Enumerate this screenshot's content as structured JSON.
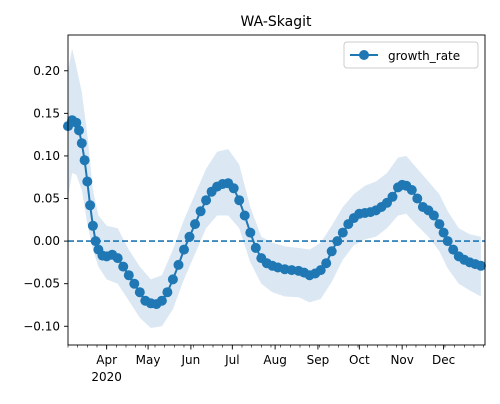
{
  "chart_data": {
    "type": "line",
    "title": "WA-Skagit",
    "xlabel": "",
    "ylabel": "",
    "x_range": [
      "2020-03-04",
      "2020-12-31"
    ],
    "ylim": [
      -0.122,
      0.242
    ],
    "y_ticks": [
      -0.1,
      -0.05,
      0.0,
      0.05,
      0.1,
      0.15,
      0.2
    ],
    "y_tick_labels": [
      "−0.10",
      "−0.05",
      "0.00",
      "0.05",
      "0.10",
      "0.15",
      "0.20"
    ],
    "x_ticks": [
      {
        "date": "2020-04-01",
        "label": "Apr",
        "sublabel": "2020"
      },
      {
        "date": "2020-05-01",
        "label": "May",
        "sublabel": ""
      },
      {
        "date": "2020-06-01",
        "label": "Jun",
        "sublabel": ""
      },
      {
        "date": "2020-07-01",
        "label": "Jul",
        "sublabel": ""
      },
      {
        "date": "2020-08-01",
        "label": "Aug",
        "sublabel": ""
      },
      {
        "date": "2020-09-01",
        "label": "Sep",
        "sublabel": ""
      },
      {
        "date": "2020-10-01",
        "label": "Oct",
        "sublabel": ""
      },
      {
        "date": "2020-11-01",
        "label": "Nov",
        "sublabel": ""
      },
      {
        "date": "2020-12-01",
        "label": "Dec",
        "sublabel": ""
      }
    ],
    "grid": false,
    "legend": {
      "position": "top-right",
      "entries": [
        "growth_rate"
      ]
    },
    "reference_line": {
      "y": 0.0,
      "style": "dashed"
    },
    "colors": {
      "line": "#1f77b4",
      "band": "#dbe8f4"
    },
    "series": [
      {
        "name": "growth_rate",
        "marker": "circle",
        "points": [
          [
            "2020-03-04",
            0.135
          ],
          [
            "2020-03-07",
            0.142
          ],
          [
            "2020-03-10",
            0.139
          ],
          [
            "2020-03-12",
            0.13
          ],
          [
            "2020-03-14",
            0.115
          ],
          [
            "2020-03-16",
            0.095
          ],
          [
            "2020-03-18",
            0.07
          ],
          [
            "2020-03-20",
            0.042
          ],
          [
            "2020-03-22",
            0.018
          ],
          [
            "2020-03-24",
            0.0
          ],
          [
            "2020-03-26",
            -0.01
          ],
          [
            "2020-03-29",
            -0.017
          ],
          [
            "2020-04-01",
            -0.018
          ],
          [
            "2020-04-05",
            -0.016
          ],
          [
            "2020-04-09",
            -0.02
          ],
          [
            "2020-04-13",
            -0.03
          ],
          [
            "2020-04-17",
            -0.04
          ],
          [
            "2020-04-21",
            -0.05
          ],
          [
            "2020-04-25",
            -0.06
          ],
          [
            "2020-04-29",
            -0.07
          ],
          [
            "2020-05-03",
            -0.073
          ],
          [
            "2020-05-07",
            -0.074
          ],
          [
            "2020-05-11",
            -0.07
          ],
          [
            "2020-05-15",
            -0.06
          ],
          [
            "2020-05-19",
            -0.045
          ],
          [
            "2020-05-23",
            -0.028
          ],
          [
            "2020-05-27",
            -0.01
          ],
          [
            "2020-05-31",
            0.005
          ],
          [
            "2020-06-04",
            0.02
          ],
          [
            "2020-06-08",
            0.035
          ],
          [
            "2020-06-12",
            0.048
          ],
          [
            "2020-06-16",
            0.058
          ],
          [
            "2020-06-20",
            0.064
          ],
          [
            "2020-06-24",
            0.067
          ],
          [
            "2020-06-28",
            0.068
          ],
          [
            "2020-07-02",
            0.062
          ],
          [
            "2020-07-06",
            0.048
          ],
          [
            "2020-07-10",
            0.03
          ],
          [
            "2020-07-14",
            0.01
          ],
          [
            "2020-07-18",
            -0.008
          ],
          [
            "2020-07-22",
            -0.02
          ],
          [
            "2020-07-26",
            -0.026
          ],
          [
            "2020-07-30",
            -0.029
          ],
          [
            "2020-08-03",
            -0.031
          ],
          [
            "2020-08-08",
            -0.033
          ],
          [
            "2020-08-13",
            -0.034
          ],
          [
            "2020-08-18",
            -0.035
          ],
          [
            "2020-08-22",
            -0.037
          ],
          [
            "2020-08-26",
            -0.04
          ],
          [
            "2020-08-30",
            -0.038
          ],
          [
            "2020-09-03",
            -0.034
          ],
          [
            "2020-09-07",
            -0.026
          ],
          [
            "2020-09-11",
            -0.012
          ],
          [
            "2020-09-15",
            0.0
          ],
          [
            "2020-09-19",
            0.01
          ],
          [
            "2020-09-23",
            0.02
          ],
          [
            "2020-09-27",
            0.027
          ],
          [
            "2020-10-01",
            0.032
          ],
          [
            "2020-10-05",
            0.033
          ],
          [
            "2020-10-09",
            0.034
          ],
          [
            "2020-10-13",
            0.036
          ],
          [
            "2020-10-17",
            0.04
          ],
          [
            "2020-10-21",
            0.045
          ],
          [
            "2020-10-25",
            0.052
          ],
          [
            "2020-10-29",
            0.063
          ],
          [
            "2020-11-01",
            0.066
          ],
          [
            "2020-11-04",
            0.065
          ],
          [
            "2020-11-08",
            0.06
          ],
          [
            "2020-11-12",
            0.05
          ],
          [
            "2020-11-16",
            0.04
          ],
          [
            "2020-11-20",
            0.036
          ],
          [
            "2020-11-24",
            0.03
          ],
          [
            "2020-11-28",
            0.02
          ],
          [
            "2020-12-01",
            0.01
          ],
          [
            "2020-12-04",
            0.0
          ],
          [
            "2020-12-08",
            -0.01
          ],
          [
            "2020-12-12",
            -0.018
          ],
          [
            "2020-12-16",
            -0.022
          ],
          [
            "2020-12-20",
            -0.025
          ],
          [
            "2020-12-24",
            -0.027
          ],
          [
            "2020-12-28",
            -0.029
          ]
        ],
        "band": [
          [
            "2020-03-04",
            0.05,
            0.2
          ],
          [
            "2020-03-07",
            0.08,
            0.226
          ],
          [
            "2020-03-10",
            0.078,
            0.205
          ],
          [
            "2020-03-14",
            0.06,
            0.175
          ],
          [
            "2020-03-18",
            0.02,
            0.125
          ],
          [
            "2020-03-22",
            -0.01,
            0.06
          ],
          [
            "2020-03-26",
            -0.03,
            0.03
          ],
          [
            "2020-04-01",
            -0.045,
            0.018
          ],
          [
            "2020-04-09",
            -0.05,
            0.015
          ],
          [
            "2020-04-17",
            -0.07,
            -0.01
          ],
          [
            "2020-04-25",
            -0.09,
            -0.03
          ],
          [
            "2020-05-03",
            -0.102,
            -0.045
          ],
          [
            "2020-05-11",
            -0.1,
            -0.04
          ],
          [
            "2020-05-19",
            -0.08,
            -0.01
          ],
          [
            "2020-05-27",
            -0.045,
            0.025
          ],
          [
            "2020-06-04",
            -0.015,
            0.055
          ],
          [
            "2020-06-12",
            0.015,
            0.085
          ],
          [
            "2020-06-20",
            0.03,
            0.105
          ],
          [
            "2020-06-28",
            0.03,
            0.108
          ],
          [
            "2020-07-06",
            0.015,
            0.09
          ],
          [
            "2020-07-14",
            -0.025,
            0.04
          ],
          [
            "2020-07-22",
            -0.05,
            0.005
          ],
          [
            "2020-07-30",
            -0.06,
            -0.002
          ],
          [
            "2020-08-08",
            -0.065,
            -0.006
          ],
          [
            "2020-08-18",
            -0.066,
            -0.008
          ],
          [
            "2020-08-26",
            -0.072,
            -0.01
          ],
          [
            "2020-09-03",
            -0.068,
            -0.002
          ],
          [
            "2020-09-11",
            -0.048,
            0.018
          ],
          [
            "2020-09-19",
            -0.022,
            0.04
          ],
          [
            "2020-09-27",
            -0.005,
            0.055
          ],
          [
            "2020-10-05",
            0.002,
            0.065
          ],
          [
            "2020-10-13",
            0.005,
            0.07
          ],
          [
            "2020-10-21",
            0.015,
            0.08
          ],
          [
            "2020-10-29",
            0.03,
            0.098
          ],
          [
            "2020-11-04",
            0.032,
            0.1
          ],
          [
            "2020-11-12",
            0.018,
            0.085
          ],
          [
            "2020-11-20",
            0.005,
            0.07
          ],
          [
            "2020-11-28",
            -0.012,
            0.055
          ],
          [
            "2020-12-04",
            -0.032,
            0.035
          ],
          [
            "2020-12-12",
            -0.05,
            0.015
          ],
          [
            "2020-12-20",
            -0.058,
            0.008
          ],
          [
            "2020-12-28",
            -0.065,
            0.005
          ]
        ]
      }
    ]
  }
}
